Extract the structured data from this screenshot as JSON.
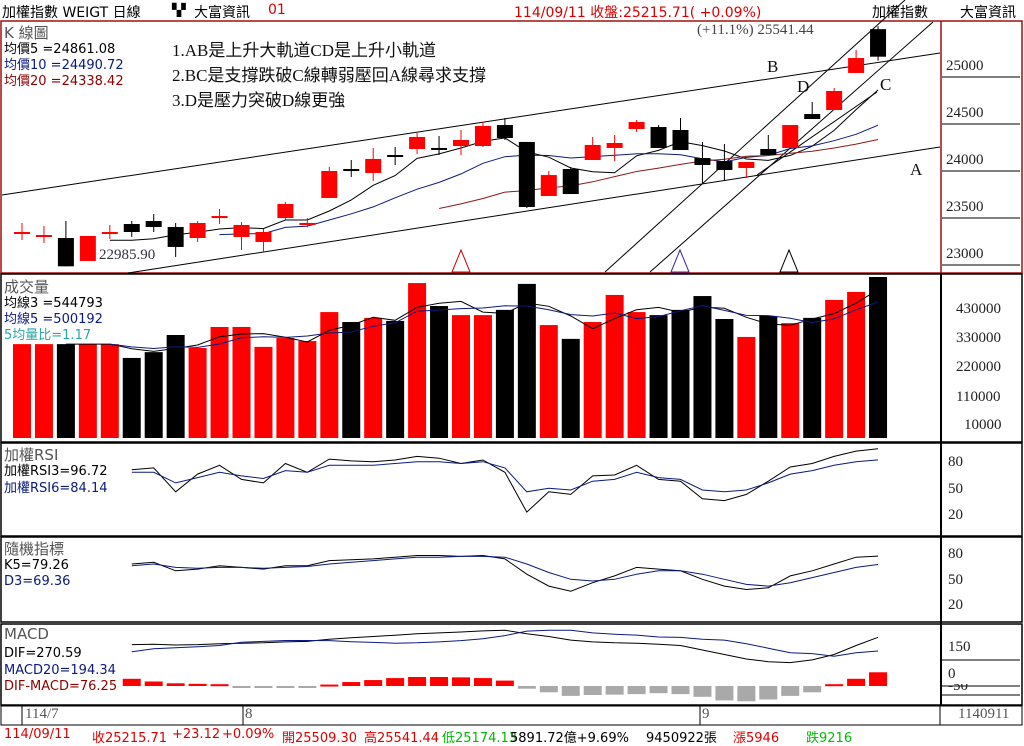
{
  "header": {
    "title": "加權指數 WEIGT 日線",
    "grid_icon": "grid-icon",
    "vendor": "大富資訊",
    "code": "01",
    "close_info": "114/09/11 收盤:25215.71( +0.09%)",
    "right_name": "加權指數",
    "right_vendor": "大富資訊"
  },
  "kpanel": {
    "title": "K 線圖",
    "ma5": "均價5 =24861.08",
    "ma10": "均價10 =24490.72",
    "ma20": "均價20 =24338.42",
    "notes": [
      "1.AB是上升大軌道CD是上升小軌道",
      "2.BC是支撐跌破C線轉弱壓回A線尋求支撐",
      "3.D是壓力突破D線更強"
    ],
    "high_label": "(+11.1%) 25541.44",
    "low_label": "22985.90",
    "line_labels": {
      "A": "A",
      "B": "B",
      "C": "C",
      "D": "D"
    },
    "axis": [
      "25000",
      "24500",
      "24000",
      "23500",
      "23000"
    ]
  },
  "volpanel": {
    "title": "成交量",
    "ma3": "均線3 =544793",
    "ma5": "均線5 =500192",
    "ratio": "5均量比=1.17",
    "axis": [
      "430000",
      "330000",
      "220000",
      "110000",
      "10000"
    ]
  },
  "rsipanel": {
    "title": "加權RSI",
    "rsi3": "加權RSI3=96.72",
    "rsi6": "加權RSI6=84.14",
    "axis": [
      "80",
      "50",
      "20"
    ]
  },
  "kdpanel": {
    "title": "隨機指標",
    "k": "K5=79.26",
    "d": "D3=69.36",
    "axis": [
      "80",
      "50",
      "20"
    ]
  },
  "macdpanel": {
    "title": "MACD",
    "dif": "DIF=270.59",
    "macd": "MACD20=194.34",
    "osc": "DIF-MACD=76.25",
    "axis": [
      "150",
      "0",
      "-50"
    ]
  },
  "xaxis": {
    "labels": [
      "114/7",
      "8",
      "9"
    ],
    "end": "1140911"
  },
  "status": {
    "date": "114/09/11",
    "close": "收25215.71",
    "change": "+23.12",
    "pct": "+0.09%",
    "open": "開25509.30",
    "high": "高25541.44",
    "low": "低25174.13",
    "amount": "5891.72億+9.69%",
    "volume": "9450922張",
    "up": "漲5946",
    "down": "跌9216"
  },
  "colors": {
    "up": "#ff0000",
    "down": "#000000",
    "ma10": "#0a1a80",
    "ma20": "#8b1a1a",
    "panel_border": "#a01010",
    "osc_neg": "#a9a9a9"
  },
  "chart_data": {
    "type": "candlestick",
    "candles": [
      [
        23340,
        23447,
        23266,
        23351
      ],
      [
        23309,
        23415,
        23234,
        23319
      ],
      [
        23287,
        23468,
        22986,
        22986
      ],
      [
        23043,
        23309,
        23043,
        23309
      ],
      [
        23340,
        23426,
        23277,
        23351
      ],
      [
        23436,
        23468,
        23298,
        23351
      ],
      [
        23468,
        23543,
        23351,
        23404
      ],
      [
        23404,
        23447,
        23085,
        23192
      ],
      [
        23287,
        23468,
        23245,
        23447
      ],
      [
        23510,
        23596,
        23436,
        23521
      ],
      [
        23298,
        23457,
        23160,
        23426
      ],
      [
        23245,
        23383,
        23138,
        23351
      ],
      [
        23500,
        23670,
        23479,
        23649
      ],
      [
        23440,
        23500,
        23400,
        23447
      ],
      [
        23713,
        24043,
        23713,
        24000
      ],
      [
        24021,
        24117,
        23936,
        24015
      ],
      [
        23979,
        24245,
        23894,
        24128
      ],
      [
        24170,
        24255,
        24064,
        24165
      ],
      [
        24234,
        24404,
        24181,
        24362
      ],
      [
        24245,
        24372,
        24170,
        24240
      ],
      [
        24266,
        24436,
        24170,
        24330
      ],
      [
        24266,
        24521,
        24255,
        24479
      ],
      [
        24489,
        24564,
        24330,
        24351
      ],
      [
        24309,
        24309,
        23606,
        23617
      ],
      [
        23734,
        24000,
        23734,
        23957
      ],
      [
        24021,
        24043,
        23755,
        23755
      ],
      [
        24117,
        24362,
        24117,
        24277
      ],
      [
        24245,
        24383,
        24106,
        24298
      ],
      [
        24447,
        24543,
        24415,
        24521
      ],
      [
        24468,
        24489,
        24245,
        24245
      ],
      [
        24436,
        24564,
        24223,
        24223
      ],
      [
        24138,
        24309,
        23872,
        24064
      ],
      [
        24106,
        24287,
        23894,
        24011
      ],
      [
        24032,
        24096,
        23926,
        24096
      ],
      [
        24234,
        24383,
        24170,
        24170
      ],
      [
        24245,
        24489,
        24245,
        24489
      ],
      [
        24606,
        24734,
        24553,
        24553
      ],
      [
        24649,
        24883,
        24649,
        24851
      ],
      [
        25043,
        25287,
        25043,
        25202
      ],
      [
        25509,
        25541,
        25174,
        25216
      ]
    ],
    "volume": [
      310000,
      310000,
      310000,
      310000,
      310000,
      260000,
      281000,
      343000,
      296000,
      372000,
      372000,
      300000,
      332000,
      321000,
      426000,
      390000,
      405000,
      394000,
      531000,
      448000,
      415000,
      415000,
      434000,
      528000,
      379000,
      329000,
      390000,
      488000,
      426000,
      415000,
      434000,
      484000,
      401000,
      336000,
      412000,
      386000,
      405000,
      470000,
      499000,
      553000
    ],
    "rsi3": [
      null,
      null,
      null,
      null,
      null,
      73,
      75,
      48,
      68,
      78,
      62,
      58,
      80,
      70,
      85,
      83,
      82,
      84,
      88,
      86,
      80,
      84,
      70,
      25,
      48,
      45,
      66,
      67,
      78,
      62,
      60,
      40,
      38,
      45,
      60,
      76,
      80,
      88,
      94,
      96.72
    ],
    "rsi6": [
      null,
      null,
      null,
      null,
      null,
      70,
      70,
      58,
      64,
      70,
      66,
      63,
      72,
      70,
      78,
      78,
      78,
      80,
      82,
      82,
      80,
      82,
      75,
      48,
      52,
      50,
      60,
      62,
      70,
      64,
      62,
      50,
      48,
      50,
      58,
      68,
      72,
      78,
      82,
      84.14
    ],
    "k": [
      null,
      null,
      null,
      null,
      null,
      70,
      72,
      62,
      64,
      68,
      66,
      64,
      68,
      68,
      74,
      75,
      76,
      78,
      80,
      80,
      79,
      80,
      76,
      58,
      44,
      38,
      48,
      56,
      66,
      64,
      62,
      52,
      44,
      40,
      42,
      56,
      62,
      70,
      78,
      79.26
    ],
    "d": [
      null,
      null,
      null,
      null,
      null,
      68,
      70,
      66,
      65,
      66,
      66,
      65,
      66,
      67,
      70,
      72,
      74,
      76,
      78,
      78,
      79,
      79,
      78,
      70,
      60,
      52,
      50,
      52,
      58,
      62,
      62,
      58,
      52,
      46,
      44,
      48,
      54,
      60,
      66,
      69.36
    ],
    "dif": [
      null,
      null,
      null,
      null,
      null,
      230,
      232,
      228,
      230,
      235,
      238,
      240,
      245,
      248,
      260,
      268,
      275,
      282,
      290,
      295,
      300,
      306,
      310,
      290,
      275,
      255,
      245,
      240,
      238,
      232,
      225,
      200,
      175,
      150,
      135,
      130,
      145,
      175,
      225,
      270.59
    ],
    "osc": [
      null,
      null,
      null,
      null,
      null,
      40,
      25,
      15,
      12,
      10,
      -5,
      -8,
      -8,
      -5,
      8,
      22,
      33,
      44,
      50,
      50,
      48,
      44,
      30,
      -15,
      -35,
      -55,
      -50,
      -48,
      -45,
      -40,
      -45,
      -60,
      -80,
      -85,
      -75,
      -55,
      -35,
      10,
      40,
      76.25
    ],
    "markers": [
      "up-triangle",
      "up-triangle",
      "up-triangle"
    ]
  }
}
